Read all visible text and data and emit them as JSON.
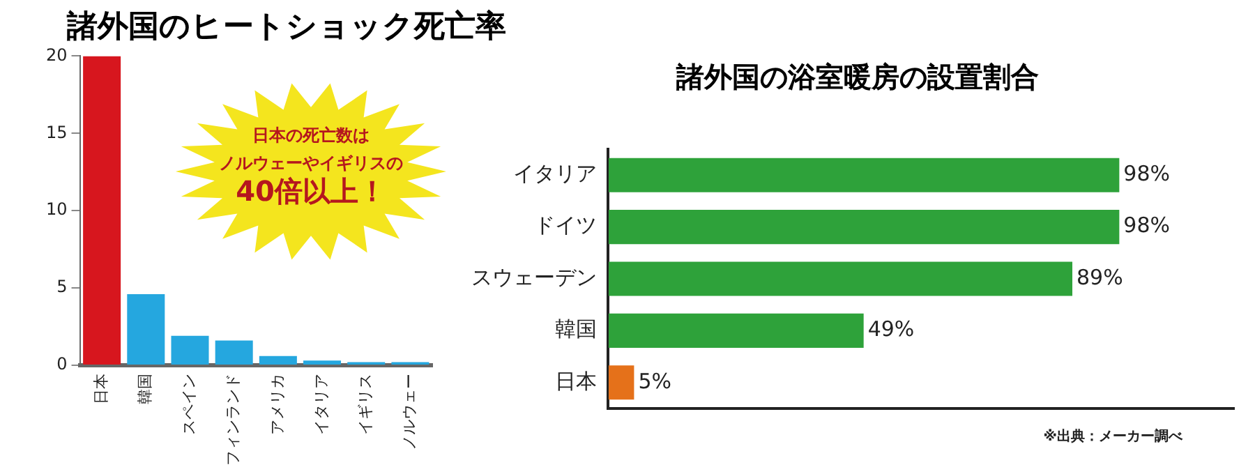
{
  "chart_data": [
    {
      "type": "bar",
      "title": "諸外国のヒートショック死亡率",
      "categories": [
        "日本",
        "韓国",
        "スペイン",
        "フィンランド",
        "アメリカ",
        "イタリア",
        "イギリス",
        "ノルウェー"
      ],
      "values": [
        20,
        4.6,
        1.9,
        1.6,
        0.6,
        0.3,
        0.2,
        0.2
      ],
      "colors": [
        "#d7161e",
        "#25a7df",
        "#25a7df",
        "#25a7df",
        "#25a7df",
        "#25a7df",
        "#25a7df",
        "#25a7df"
      ],
      "ylim": [
        0,
        20
      ],
      "yticks": [
        0,
        5,
        10,
        15,
        20
      ],
      "grid": false,
      "annotations": [
        "日本の死亡数は",
        "ノルウェーやイギリスの",
        "40倍以上！"
      ]
    },
    {
      "type": "bar",
      "orientation": "horizontal",
      "title": "諸外国の浴室暖房の設置割合",
      "categories": [
        "イタリア",
        "ドイツ",
        "スウェーデン",
        "韓国",
        "日本"
      ],
      "values": [
        98,
        98,
        89,
        49,
        5
      ],
      "colors": [
        "#2ea23a",
        "#2ea23a",
        "#2ea23a",
        "#2ea23a",
        "#e5711a"
      ],
      "value_labels": [
        "98%",
        "98%",
        "89%",
        "49%",
        "5%"
      ],
      "xlim": [
        0,
        120
      ],
      "tick_labels": "y",
      "grid": false,
      "annotations": [
        "※出典：メーカー調べ"
      ]
    }
  ]
}
